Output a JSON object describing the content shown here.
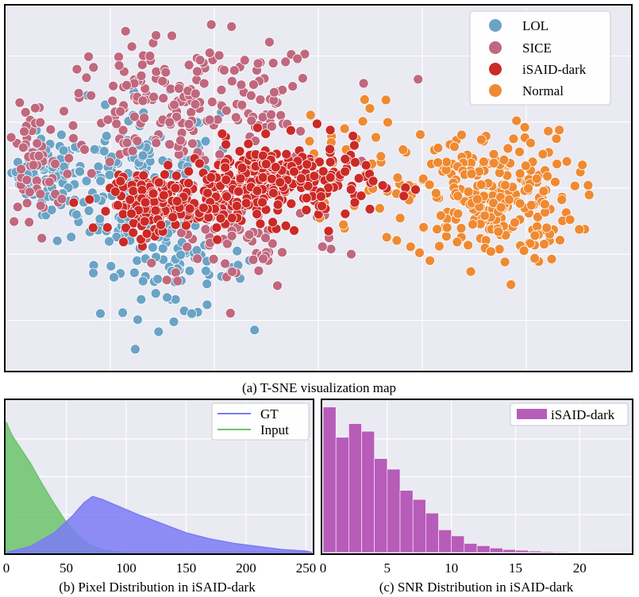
{
  "captions": {
    "a": "(a) T-SNE visualization map",
    "b": "(b)  Pixel Distribution in iSAID-dark",
    "c": "(c) SNR Distribution in iSAID-dark"
  },
  "colors": {
    "background": "#eaeaf2",
    "grid": "#ffffff",
    "lol": "#6aa3c5",
    "sice": "#c0687e",
    "isaid_dark": "#cc2a27",
    "normal": "#ef8a32",
    "gt": "#7b7bf5",
    "input": "#6cc46c",
    "snr": "#b85cba"
  },
  "chart_data": [
    {
      "id": "tsne",
      "type": "scatter",
      "title": "(a) T-SNE visualization map",
      "xlim": [
        -60,
        60
      ],
      "ylim": [
        -55,
        55
      ],
      "grid": true,
      "axis_labels_shown": false,
      "legend_position": "top-right",
      "series": [
        {
          "name": "LOL",
          "color": "#6aa3c5",
          "clusters": [
            {
              "cx": -52,
              "cy": 5,
              "sx": 3.5,
              "sy": 5,
              "n": 80
            },
            {
              "cx": -35,
              "cy": 2,
              "sx": 8,
              "sy": 12,
              "n": 180
            },
            {
              "cx": -28,
              "cy": -25,
              "sx": 7,
              "sy": 7,
              "n": 70
            }
          ]
        },
        {
          "name": "SICE",
          "color": "#c0687e",
          "clusters": [
            {
              "cx": -25,
              "cy": 25,
              "sx": 14,
              "sy": 10,
              "n": 220
            },
            {
              "cx": -55,
              "cy": 5,
              "sx": 3,
              "sy": 9,
              "n": 50
            },
            {
              "cx": -15,
              "cy": -15,
              "sx": 10,
              "sy": 8,
              "n": 70
            }
          ]
        },
        {
          "name": "iSAID-dark",
          "color": "#cc2a27",
          "clusters": [
            {
              "cx": -32,
              "cy": -5,
              "sx": 4,
              "sy": 4,
              "n": 150
            },
            {
              "cx": -8,
              "cy": 2,
              "sx": 9,
              "sy": 6,
              "n": 260
            },
            {
              "cx": -20,
              "cy": -3,
              "sx": 6,
              "sy": 4,
              "n": 80
            }
          ]
        },
        {
          "name": "Normal",
          "color": "#ef8a32",
          "clusters": [
            {
              "cx": 33,
              "cy": -3,
              "sx": 8,
              "sy": 10,
              "n": 260
            },
            {
              "cx": 8,
              "cy": 10,
              "sx": 5,
              "sy": 10,
              "n": 30
            }
          ]
        }
      ]
    },
    {
      "id": "pixel",
      "type": "area",
      "title": "(b)  Pixel Distribution in iSAID-dark",
      "xlim": [
        0,
        255
      ],
      "ylim": [
        0,
        1
      ],
      "xticks": [
        0,
        50,
        100,
        150,
        200,
        250
      ],
      "grid": true,
      "legend_position": "top-right",
      "series": [
        {
          "name": "GT",
          "color": "#7b7bf5",
          "x": [
            0,
            20,
            40,
            55,
            65,
            72,
            80,
            95,
            110,
            130,
            150,
            170,
            190,
            210,
            230,
            250,
            255
          ],
          "y": [
            0.0,
            0.04,
            0.13,
            0.24,
            0.33,
            0.37,
            0.35,
            0.3,
            0.25,
            0.19,
            0.13,
            0.09,
            0.06,
            0.04,
            0.02,
            0.01,
            0.0
          ]
        },
        {
          "name": "Input",
          "color": "#6cc46c",
          "x": [
            0,
            2,
            5,
            10,
            20,
            30,
            40,
            50,
            60,
            70,
            80,
            90,
            100
          ],
          "y": [
            0.86,
            0.82,
            0.77,
            0.71,
            0.59,
            0.45,
            0.32,
            0.2,
            0.11,
            0.05,
            0.02,
            0.006,
            0.0
          ]
        }
      ]
    },
    {
      "id": "snr",
      "type": "bar",
      "title": "(c) SNR Distribution in iSAID-dark",
      "xlim": [
        0,
        24
      ],
      "ylim": [
        0,
        1
      ],
      "xticks": [
        0,
        5,
        10,
        15,
        20
      ],
      "grid": true,
      "legend_position": "top-right",
      "bin_width": 1,
      "series": [
        {
          "name": "iSAID-dark",
          "color": "#b85cba",
          "bins": [
            0,
            1,
            2,
            3,
            4,
            5,
            6,
            7,
            8,
            9,
            10,
            11,
            12,
            13,
            14,
            15,
            16,
            17,
            18,
            19,
            20,
            21,
            22,
            23
          ],
          "values": [
            0.96,
            0.76,
            0.85,
            0.8,
            0.62,
            0.55,
            0.41,
            0.35,
            0.26,
            0.15,
            0.11,
            0.06,
            0.045,
            0.03,
            0.02,
            0.015,
            0.01,
            0.007,
            0.005,
            0.003,
            0.002,
            0.001,
            0.001,
            0.001
          ]
        }
      ]
    }
  ]
}
